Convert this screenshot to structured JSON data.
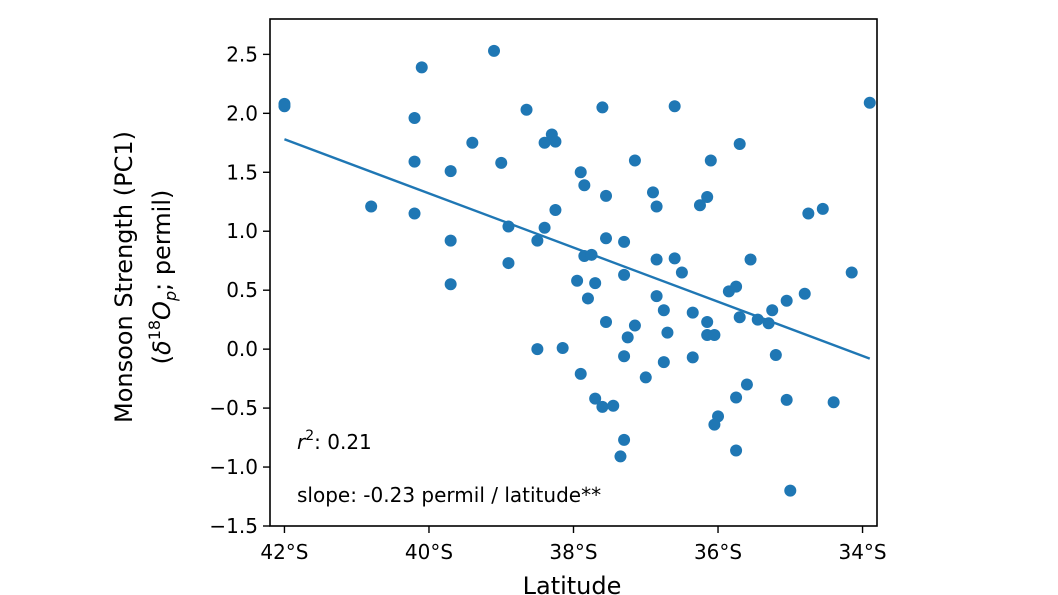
{
  "chart_data": {
    "type": "scatter",
    "xlabel": "Latitude",
    "ylabel_line1": "Monsoon Strength (PC1)",
    "ylabel_line2_pre": "(",
    "ylabel_delta": "δ",
    "ylabel_sup": "18",
    "ylabel_O": "O",
    "ylabel_sub": "p",
    "ylabel_line2_post": "; permil)",
    "xlim": [
      -42.2,
      -33.8
    ],
    "ylim": [
      -1.5,
      2.8
    ],
    "xticks": [
      {
        "value": -42,
        "label": "42°S"
      },
      {
        "value": -40,
        "label": "40°S"
      },
      {
        "value": -38,
        "label": "38°S"
      },
      {
        "value": -36,
        "label": "36°S"
      },
      {
        "value": -34,
        "label": "34°S"
      }
    ],
    "yticks": [
      {
        "value": 2.5,
        "label": "2.5"
      },
      {
        "value": 2.0,
        "label": "2.0"
      },
      {
        "value": 1.5,
        "label": "1.5"
      },
      {
        "value": 1.0,
        "label": "1.0"
      },
      {
        "value": 0.5,
        "label": "0.5"
      },
      {
        "value": 0.0,
        "label": "0.0"
      },
      {
        "value": -0.5,
        "label": "−0.5"
      },
      {
        "value": -1.0,
        "label": "−1.0"
      },
      {
        "value": -1.5,
        "label": "−1.5"
      }
    ],
    "series_color": "#1f77b4",
    "points": [
      [
        -42.0,
        2.08
      ],
      [
        -42.0,
        2.06
      ],
      [
        -40.8,
        1.21
      ],
      [
        -40.1,
        2.39
      ],
      [
        -40.2,
        1.96
      ],
      [
        -40.2,
        1.59
      ],
      [
        -40.2,
        1.15
      ],
      [
        -39.7,
        1.51
      ],
      [
        -39.7,
        0.92
      ],
      [
        -39.7,
        0.55
      ],
      [
        -39.4,
        1.75
      ],
      [
        -39.1,
        2.53
      ],
      [
        -39.0,
        1.58
      ],
      [
        -38.9,
        1.04
      ],
      [
        -38.9,
        0.73
      ],
      [
        -38.65,
        2.03
      ],
      [
        -38.4,
        1.75
      ],
      [
        -38.3,
        1.82
      ],
      [
        -38.25,
        1.76
      ],
      [
        -38.5,
        0.92
      ],
      [
        -38.4,
        1.03
      ],
      [
        -38.25,
        1.18
      ],
      [
        -38.5,
        0.0
      ],
      [
        -38.15,
        0.01
      ],
      [
        -37.95,
        0.58
      ],
      [
        -37.9,
        1.5
      ],
      [
        -37.85,
        1.39
      ],
      [
        -37.85,
        0.79
      ],
      [
        -37.75,
        0.8
      ],
      [
        -37.8,
        0.43
      ],
      [
        -37.7,
        0.56
      ],
      [
        -37.9,
        -0.21
      ],
      [
        -37.7,
        -0.42
      ],
      [
        -37.6,
        2.05
      ],
      [
        -37.55,
        1.3
      ],
      [
        -37.55,
        0.94
      ],
      [
        -37.55,
        0.23
      ],
      [
        -37.6,
        -0.49
      ],
      [
        -37.45,
        -0.48
      ],
      [
        -37.3,
        0.91
      ],
      [
        -37.3,
        0.63
      ],
      [
        -37.25,
        0.1
      ],
      [
        -37.15,
        0.2
      ],
      [
        -37.3,
        -0.06
      ],
      [
        -37.3,
        -0.77
      ],
      [
        -37.35,
        -0.91
      ],
      [
        -37.15,
        1.6
      ],
      [
        -36.9,
        1.33
      ],
      [
        -36.85,
        1.21
      ],
      [
        -36.85,
        0.76
      ],
      [
        -36.85,
        0.45
      ],
      [
        -36.75,
        0.33
      ],
      [
        -36.7,
        0.14
      ],
      [
        -36.75,
        -0.11
      ],
      [
        -37.0,
        -0.24
      ],
      [
        -36.6,
        2.06
      ],
      [
        -36.6,
        0.77
      ],
      [
        -36.5,
        0.65
      ],
      [
        -36.35,
        0.31
      ],
      [
        -36.35,
        -0.07
      ],
      [
        -36.25,
        1.22
      ],
      [
        -36.15,
        1.29
      ],
      [
        -36.1,
        1.6
      ],
      [
        -36.15,
        0.23
      ],
      [
        -36.15,
        0.12
      ],
      [
        -36.05,
        0.12
      ],
      [
        -36.0,
        -0.57
      ],
      [
        -36.05,
        -0.64
      ],
      [
        -35.85,
        0.49
      ],
      [
        -35.75,
        0.53
      ],
      [
        -35.7,
        1.74
      ],
      [
        -35.7,
        0.27
      ],
      [
        -35.55,
        0.76
      ],
      [
        -35.45,
        0.25
      ],
      [
        -35.3,
        0.22
      ],
      [
        -35.25,
        0.33
      ],
      [
        -35.2,
        -0.05
      ],
      [
        -35.6,
        -0.3
      ],
      [
        -35.75,
        -0.41
      ],
      [
        -35.75,
        -0.86
      ],
      [
        -35.05,
        0.41
      ],
      [
        -35.0,
        -1.2
      ],
      [
        -35.05,
        -0.43
      ],
      [
        -34.8,
        0.47
      ],
      [
        -34.75,
        1.15
      ],
      [
        -34.55,
        1.19
      ],
      [
        -34.4,
        -0.45
      ],
      [
        -34.15,
        0.65
      ],
      [
        -33.9,
        2.09
      ]
    ],
    "fit_line": {
      "x": [
        -42.0,
        -33.9
      ],
      "y": [
        1.78,
        -0.08
      ]
    },
    "annotation_r2_base": "r",
    "annotation_r2_sup": "2",
    "annotation_r2_value": ": 0.21",
    "annotation_slope": "slope: -0.23 permil / latitude**"
  }
}
